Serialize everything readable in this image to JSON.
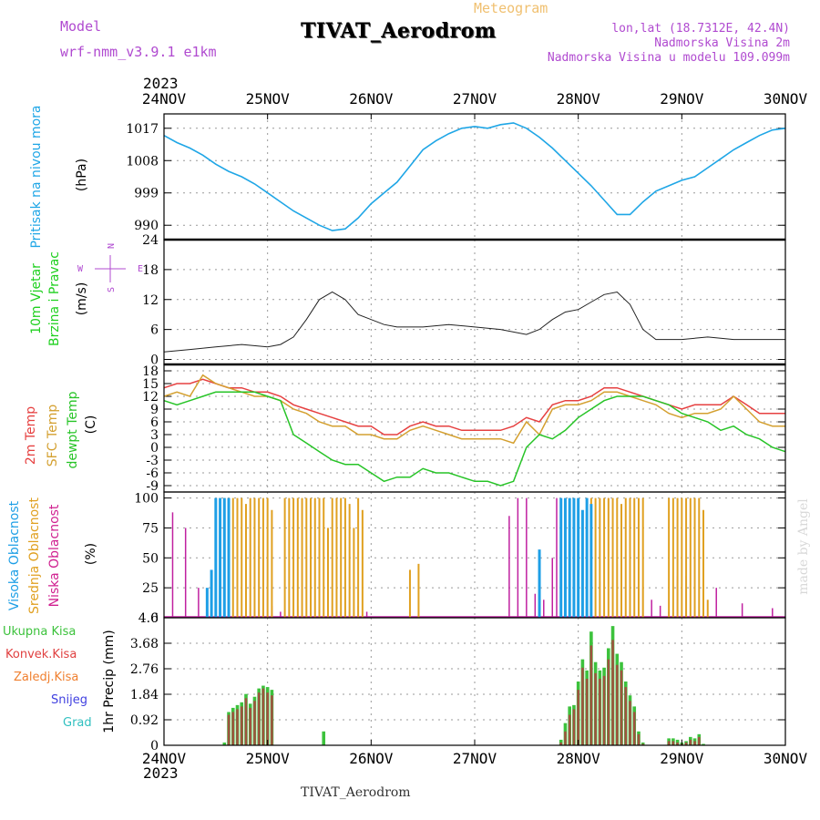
{
  "header": {
    "model_label": "Model",
    "model_name": "wrf-nmm_v3.9.1 e1km",
    "meteogram_label": "Meteogram",
    "station": "TIVAT_Aerodrom",
    "lonlat": "lon,lat (18.7312E, 42.4N)",
    "elevation": "Nadmorska Visina 2m",
    "elevation_model": "Nadmorska Visina u modelu 109.099m",
    "footer_station": "TIVAT_Aerodrom",
    "watermark": "made by Angel",
    "year": "2023"
  },
  "colors": {
    "pressure": "#1fa6e6",
    "temp2m": "#e64040",
    "sfc": "#d4a030",
    "dewpt": "#27c427",
    "high_cloud": "#1e9fe6",
    "mid_cloud": "#e0a020",
    "low_cloud": "#c020a0",
    "total_rain": "#3cc23c",
    "conv_rain": "#b04040",
    "label_purple": "#b04ad0"
  },
  "left_labels": {
    "pressure": [
      "Pritisak na nivou mora",
      "(hPa)"
    ],
    "wind": [
      "10m Vjetar",
      "Brzina i Pravac",
      "(m/s)"
    ],
    "temp": [
      "2m Temp",
      "SFC Temp",
      "dewpt Temp",
      "(C)"
    ],
    "cloud": [
      "Visoka Oblacnost",
      "Srednja Oblacnost",
      "Niska Oblacnost",
      "(%)"
    ],
    "precip_axis": "1hr Precip (mm)",
    "precip_legend": [
      "Ukupna Kisa",
      "Konvek.Kisa",
      "Zaledj.Kisa",
      "Snijeg",
      "Grad"
    ],
    "compass": [
      "N",
      "W",
      "E",
      "S"
    ]
  },
  "chart_data": [
    {
      "type": "line",
      "title": "Pritisak na nivou mora",
      "ylabel": "(hPa)",
      "x_ticks": [
        "24NOV",
        "25NOV",
        "26NOV",
        "27NOV",
        "28NOV",
        "29NOV",
        "30NOV"
      ],
      "xlim_hours": [
        0,
        144
      ],
      "ylim": [
        986,
        1021
      ],
      "y_ticks": [
        990,
        999,
        1008,
        1017
      ],
      "grid": true,
      "series": [
        {
          "hours": [
            0,
            3,
            6,
            9,
            12,
            15,
            18,
            21,
            24,
            27,
            30,
            33,
            36,
            39,
            42,
            45,
            48,
            51,
            54,
            57,
            60,
            63,
            66,
            69,
            72,
            75,
            78,
            81,
            84,
            87,
            90,
            93,
            96,
            99,
            102,
            105,
            108,
            111,
            114,
            117,
            120,
            123,
            126,
            129,
            132,
            135,
            138,
            141,
            144
          ],
          "values": [
            1015,
            1013,
            1011.5,
            1009.5,
            1007,
            1005,
            1003.5,
            1001.5,
            999,
            996.5,
            994,
            992,
            990,
            988.5,
            989,
            992,
            996,
            999,
            1002,
            1006.5,
            1011,
            1013.5,
            1015.5,
            1017,
            1017.5,
            1017,
            1018,
            1018.5,
            1017,
            1014.5,
            1011.5,
            1008,
            1004.5,
            1001,
            997,
            993,
            993,
            996.5,
            999.5,
            1001,
            1002.5,
            1003.5,
            1006,
            1008.5,
            1011,
            1013,
            1015,
            1016.5,
            1017
          ]
        }
      ]
    },
    {
      "type": "line",
      "title": "10m Vjetar Brzina i Pravac",
      "ylabel": "(m/s)",
      "x_ticks": [
        "24NOV",
        "25NOV",
        "26NOV",
        "27NOV",
        "28NOV",
        "29NOV",
        "30NOV"
      ],
      "xlim_hours": [
        0,
        144
      ],
      "ylim": [
        -1,
        24
      ],
      "y_ticks": [
        0,
        6,
        12,
        18,
        24
      ],
      "grid": true,
      "series": [
        {
          "hours": [
            0,
            6,
            12,
            18,
            24,
            27,
            30,
            33,
            36,
            39,
            42,
            45,
            48,
            51,
            54,
            60,
            66,
            72,
            78,
            84,
            87,
            90,
            93,
            96,
            99,
            102,
            105,
            108,
            111,
            114,
            120,
            126,
            132,
            138,
            144
          ],
          "values": [
            1.5,
            2,
            2.5,
            3,
            2.5,
            3,
            4.5,
            8,
            12,
            13.5,
            12,
            9,
            8,
            7,
            6.5,
            6.5,
            7,
            6.5,
            6,
            5,
            6,
            8,
            9.5,
            10,
            11.5,
            13,
            13.5,
            11,
            6,
            4,
            4,
            4.5,
            4,
            4,
            4
          ]
        }
      ]
    },
    {
      "type": "line",
      "title": "2m Temp / SFC Temp / dewpt Temp",
      "ylabel": "(C)",
      "x_ticks": [
        "24NOV",
        "25NOV",
        "26NOV",
        "27NOV",
        "28NOV",
        "29NOV",
        "30NOV"
      ],
      "xlim_hours": [
        0,
        144
      ],
      "ylim": [
        -10.5,
        19.5
      ],
      "y_ticks": [
        -9,
        -6,
        -3,
        0,
        3,
        6,
        9,
        12,
        15,
        18
      ],
      "grid": true,
      "series": [
        {
          "name": "2m Temp",
          "hours": [
            0,
            3,
            6,
            9,
            12,
            15,
            18,
            21,
            24,
            27,
            30,
            33,
            36,
            39,
            42,
            45,
            48,
            51,
            54,
            57,
            60,
            63,
            66,
            69,
            72,
            75,
            78,
            81,
            84,
            87,
            90,
            93,
            96,
            99,
            102,
            105,
            108,
            111,
            114,
            117,
            120,
            123,
            126,
            129,
            132,
            135,
            138,
            141,
            144
          ],
          "values": [
            14,
            15,
            15,
            16,
            15,
            14,
            14,
            13,
            13,
            12,
            10,
            9,
            8,
            7,
            6,
            5,
            5,
            3,
            3,
            5,
            6,
            5,
            5,
            4,
            4,
            4,
            4,
            5,
            7,
            6,
            10,
            11,
            11,
            12,
            14,
            14,
            13,
            12,
            11,
            10,
            9,
            10,
            10,
            10,
            12,
            10,
            8,
            8,
            8
          ]
        },
        {
          "name": "SFC Temp",
          "hours": [
            0,
            3,
            6,
            9,
            12,
            15,
            18,
            21,
            24,
            27,
            30,
            33,
            36,
            39,
            42,
            45,
            48,
            51,
            54,
            57,
            60,
            63,
            66,
            69,
            72,
            75,
            78,
            81,
            84,
            87,
            90,
            93,
            96,
            99,
            102,
            105,
            108,
            111,
            114,
            117,
            120,
            123,
            126,
            129,
            132,
            135,
            138,
            141,
            144
          ],
          "values": [
            12,
            13,
            12,
            17,
            15,
            14,
            13,
            12,
            12,
            11,
            9,
            8,
            6,
            5,
            5,
            3,
            3,
            2,
            2,
            4,
            5,
            4,
            3,
            2,
            2,
            2,
            2,
            1,
            6,
            3,
            9,
            10,
            10,
            11,
            13,
            13,
            12,
            11,
            10,
            8,
            7,
            8,
            8,
            9,
            12,
            9,
            6,
            5,
            5
          ]
        },
        {
          "name": "dewpt Temp",
          "hours": [
            0,
            3,
            6,
            9,
            12,
            15,
            18,
            21,
            24,
            27,
            30,
            33,
            36,
            39,
            42,
            45,
            48,
            51,
            54,
            57,
            60,
            63,
            66,
            69,
            72,
            75,
            78,
            81,
            84,
            87,
            90,
            93,
            96,
            99,
            102,
            105,
            108,
            111,
            114,
            117,
            120,
            123,
            126,
            129,
            132,
            135,
            138,
            141,
            144
          ],
          "values": [
            11,
            10,
            11,
            12,
            13,
            13,
            13,
            13,
            12,
            11,
            3,
            1,
            -1,
            -3,
            -4,
            -4,
            -6,
            -8,
            -7,
            -7,
            -5,
            -6,
            -6,
            -7,
            -8,
            -8,
            -9,
            -8,
            0,
            3,
            2,
            4,
            7,
            9,
            11,
            12,
            12,
            12,
            11,
            10,
            8,
            7,
            6,
            4,
            5,
            3,
            2,
            0,
            -1
          ]
        }
      ]
    },
    {
      "type": "bar",
      "title": "Visoka / Srednja / Niska Oblacnost",
      "ylabel": "(%)",
      "x_ticks": [
        "24NOV",
        "25NOV",
        "26NOV",
        "27NOV",
        "28NOV",
        "29NOV",
        "30NOV"
      ],
      "xlim_hours": [
        0,
        144
      ],
      "ylim": [
        0,
        105
      ],
      "y_ticks": [
        0,
        25,
        50,
        75,
        100
      ],
      "grid": true,
      "series": [
        {
          "name": "Niska Oblacnost",
          "hours": [
            2,
            5,
            8,
            10,
            12,
            13,
            14,
            15,
            17,
            19,
            20,
            22,
            23,
            24,
            25,
            27,
            29,
            31,
            33,
            35,
            37,
            39,
            41,
            43,
            45,
            47,
            80,
            82,
            84,
            86,
            88,
            90,
            91,
            93,
            95,
            97,
            99,
            101,
            103,
            105,
            107,
            109,
            111,
            113,
            115,
            117,
            119,
            121,
            123,
            128,
            134,
            141
          ],
          "values": [
            88,
            75,
            25,
            15,
            45,
            60,
            70,
            60,
            85,
            75,
            70,
            60,
            50,
            25,
            10,
            5,
            15,
            10,
            60,
            50,
            30,
            10,
            5,
            5,
            10,
            5,
            85,
            100,
            100,
            20,
            15,
            50,
            100,
            60,
            90,
            80,
            70,
            30,
            100,
            45,
            30,
            100,
            25,
            15,
            10,
            5,
            35,
            35,
            50,
            25,
            12,
            8
          ]
        },
        {
          "name": "Srednja Oblacnost",
          "hours": [
            13,
            14,
            15,
            16,
            17,
            18,
            19,
            20,
            21,
            22,
            23,
            24,
            25,
            28,
            29,
            30,
            31,
            32,
            33,
            34,
            35,
            36,
            37,
            38,
            39,
            40,
            41,
            42,
            43,
            44,
            45,
            46,
            57,
            59,
            98,
            99,
            100,
            101,
            102,
            103,
            104,
            105,
            106,
            107,
            108,
            109,
            110,
            111,
            117,
            118,
            119,
            120,
            121,
            122,
            123,
            124,
            125,
            126
          ],
          "values": [
            100,
            100,
            100,
            100,
            100,
            100,
            95,
            100,
            100,
            100,
            100,
            100,
            90,
            100,
            100,
            100,
            100,
            100,
            100,
            100,
            100,
            100,
            100,
            75,
            100,
            100,
            100,
            100,
            95,
            75,
            100,
            90,
            40,
            45,
            100,
            100,
            100,
            100,
            100,
            100,
            100,
            100,
            95,
            100,
            100,
            100,
            100,
            100,
            100,
            100,
            100,
            100,
            100,
            100,
            100,
            100,
            90,
            15
          ]
        },
        {
          "name": "Visoka Oblacnost",
          "hours": [
            10,
            11,
            12,
            13,
            14,
            15,
            87,
            92,
            93,
            94,
            95,
            96,
            97,
            98,
            99
          ],
          "values": [
            25,
            40,
            100,
            100,
            100,
            100,
            57,
            100,
            100,
            100,
            100,
            100,
            90,
            100,
            95
          ]
        }
      ]
    },
    {
      "type": "bar",
      "title": "1hr Precip",
      "ylabel": "1hr Precip (mm)",
      "x_ticks": [
        "24NOV",
        "25NOV",
        "26NOV",
        "27NOV",
        "28NOV",
        "29NOV",
        "30NOV"
      ],
      "xlim_hours": [
        0,
        144
      ],
      "ylim": [
        0,
        4.6
      ],
      "y_ticks": [
        0,
        0.92,
        1.84,
        2.76,
        3.68,
        4.6
      ],
      "grid": true,
      "series": [
        {
          "name": "Ukupna Kisa",
          "hours": [
            14,
            15,
            16,
            17,
            18,
            19,
            20,
            21,
            22,
            23,
            24,
            25,
            37,
            92,
            93,
            94,
            95,
            96,
            97,
            98,
            99,
            100,
            101,
            102,
            103,
            104,
            105,
            106,
            107,
            108,
            109,
            110,
            111,
            117,
            118,
            119,
            120,
            121,
            122,
            123,
            124,
            125
          ],
          "values": [
            0.1,
            1.2,
            1.35,
            1.45,
            1.55,
            1.85,
            1.5,
            1.75,
            2.05,
            2.15,
            2.1,
            2.0,
            0.5,
            0.2,
            0.8,
            1.4,
            1.45,
            2.3,
            3.1,
            2.7,
            4.1,
            3.0,
            2.7,
            2.8,
            3.5,
            4.3,
            3.3,
            3.0,
            2.3,
            1.8,
            1.4,
            0.5,
            0.1,
            0.25,
            0.25,
            0.2,
            0.1,
            0.15,
            0.3,
            0.25,
            0.4,
            0.05
          ]
        },
        {
          "name": "Konvek.Kisa",
          "hours": [
            15,
            16,
            17,
            18,
            19,
            20,
            21,
            22,
            23,
            24,
            25,
            92,
            93,
            94,
            95,
            96,
            97,
            98,
            99,
            100,
            101,
            102,
            103,
            104,
            105,
            106,
            107,
            108,
            109,
            110,
            111,
            117,
            118,
            119,
            120,
            121,
            122,
            123,
            124
          ],
          "values": [
            1.1,
            1.2,
            1.3,
            1.4,
            1.7,
            1.35,
            1.6,
            1.9,
            2.05,
            1.9,
            1.8,
            0.1,
            0.5,
            1.1,
            1.3,
            2.0,
            2.8,
            2.4,
            3.6,
            2.6,
            2.4,
            2.5,
            3.1,
            3.8,
            2.9,
            2.7,
            2.1,
            1.6,
            1.2,
            0.4,
            0.05,
            0.15,
            0.15,
            0.1,
            0.05,
            0.1,
            0.2,
            0.15,
            0.3
          ]
        }
      ]
    }
  ]
}
